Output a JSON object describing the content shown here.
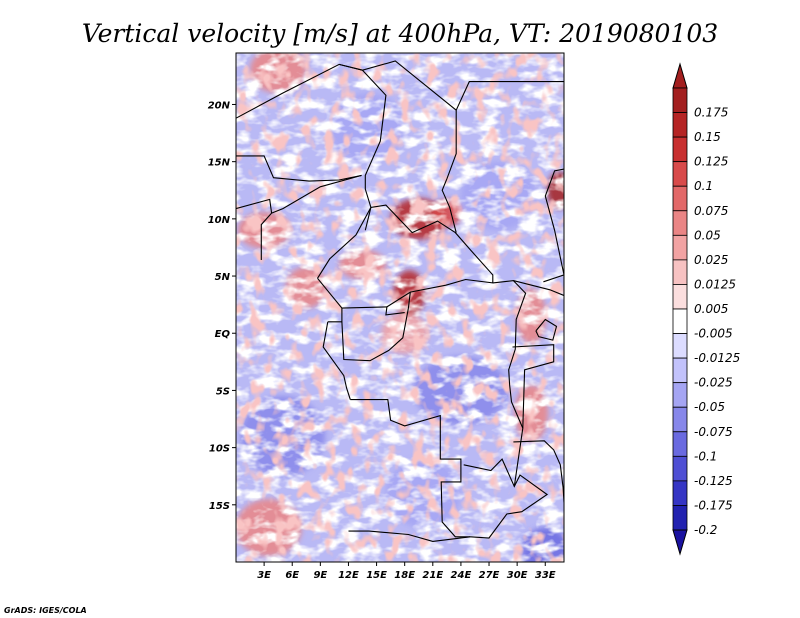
{
  "chart_data": {
    "type": "heatmap",
    "title": "Vertical velocity [m/s] at 400hPa, VT: 2019080103",
    "variable": "Vertical velocity",
    "units": "m/s",
    "level": "400hPa",
    "valid_time": "2019080103",
    "x_axis": {
      "ticks": [
        {
          "value": 3,
          "label": "3E"
        },
        {
          "value": 6,
          "label": "6E"
        },
        {
          "value": 9,
          "label": "9E"
        },
        {
          "value": 12,
          "label": "12E"
        },
        {
          "value": 15,
          "label": "15E"
        },
        {
          "value": 18,
          "label": "18E"
        },
        {
          "value": 21,
          "label": "21E"
        },
        {
          "value": 24,
          "label": "24E"
        },
        {
          "value": 27,
          "label": "27E"
        },
        {
          "value": 30,
          "label": "30E"
        },
        {
          "value": 33,
          "label": "33E"
        }
      ],
      "range": [
        0,
        35
      ]
    },
    "y_axis": {
      "ticks": [
        {
          "value": 20,
          "label": "20N"
        },
        {
          "value": 15,
          "label": "15N"
        },
        {
          "value": 10,
          "label": "10N"
        },
        {
          "value": 5,
          "label": "5N"
        },
        {
          "value": 0,
          "label": "EQ"
        },
        {
          "value": -5,
          "label": "5S"
        },
        {
          "value": -10,
          "label": "10S"
        },
        {
          "value": -15,
          "label": "15S"
        }
      ],
      "range": [
        -20,
        24.5
      ]
    },
    "colorbar": {
      "levels": [
        {
          "label": "0.175",
          "color": "#a31f1f"
        },
        {
          "label": "0.15",
          "color": "#b52424"
        },
        {
          "label": "0.125",
          "color": "#c83030"
        },
        {
          "label": "0.1",
          "color": "#d84a4a"
        },
        {
          "label": "0.075",
          "color": "#e26868"
        },
        {
          "label": "0.05",
          "color": "#ea8585"
        },
        {
          "label": "0.025",
          "color": "#f2a3a3"
        },
        {
          "label": "0.0125",
          "color": "#f7c2c2"
        },
        {
          "label": "0.005",
          "color": "#fbdede"
        },
        {
          "label": "-0.005",
          "color": "#ffffff"
        },
        {
          "label": "-0.0125",
          "color": "#dcdcff"
        },
        {
          "label": "-0.025",
          "color": "#c2c2fb"
        },
        {
          "label": "-0.05",
          "color": "#a5a5f3"
        },
        {
          "label": "-0.075",
          "color": "#8787ea"
        },
        {
          "label": "-0.1",
          "color": "#6a6ae0"
        },
        {
          "label": "-0.125",
          "color": "#4f4fd4"
        },
        {
          "label": "-0.175",
          "color": "#3535c4"
        },
        {
          "label": "-0.2",
          "color": "#2222b0"
        }
      ],
      "bottom_color": "#1a12a0",
      "top_color": "#a31f1f"
    },
    "hotspots": [
      {
        "lon": 19.5,
        "lat": 10.0,
        "strength": 0.16,
        "rx": 3.0,
        "ry": 1.8
      },
      {
        "lon": 22.5,
        "lat": 10.5,
        "strength": 0.12,
        "rx": 1.6,
        "ry": 1.2
      },
      {
        "lon": 18.5,
        "lat": 3.5,
        "strength": 0.15,
        "rx": 1.7,
        "ry": 2.0
      },
      {
        "lon": 34.5,
        "lat": 12.5,
        "strength": 0.2,
        "rx": 1.3,
        "ry": 1.6
      },
      {
        "lon": 13.5,
        "lat": 6.0,
        "strength": 0.05,
        "rx": 2.5,
        "ry": 1.3
      },
      {
        "lon": 4.5,
        "lat": 23.0,
        "strength": 0.05,
        "rx": 3.0,
        "ry": 2.0
      },
      {
        "lon": 3.0,
        "lat": 9.0,
        "strength": 0.05,
        "rx": 2.8,
        "ry": 1.6
      },
      {
        "lon": 7.5,
        "lat": 4.0,
        "strength": 0.05,
        "rx": 2.2,
        "ry": 1.8
      },
      {
        "lon": 18.0,
        "lat": 0.0,
        "strength": 0.04,
        "rx": 2.5,
        "ry": 1.8
      },
      {
        "lon": 31.5,
        "lat": 1.5,
        "strength": 0.07,
        "rx": 1.6,
        "ry": 2.4
      },
      {
        "lon": 31.5,
        "lat": -7.0,
        "strength": 0.05,
        "rx": 1.8,
        "ry": 2.5
      },
      {
        "lon": 3.5,
        "lat": -17.0,
        "strength": 0.05,
        "rx": 3.5,
        "ry": 2.5
      },
      {
        "lon": 24.0,
        "lat": -5.0,
        "strength": -0.06,
        "rx": 5.0,
        "ry": 3.0
      },
      {
        "lon": 5.0,
        "lat": -9.0,
        "strength": -0.07,
        "rx": 4.5,
        "ry": 3.5
      },
      {
        "lon": 28.0,
        "lat": 12.0,
        "strength": -0.05,
        "rx": 4.0,
        "ry": 3.0
      },
      {
        "lon": 14.0,
        "lat": 18.0,
        "strength": -0.04,
        "rx": 4.0,
        "ry": 3.0
      },
      {
        "lon": 33.0,
        "lat": -19.0,
        "strength": -0.09,
        "rx": 2.5,
        "ry": 2.0
      },
      {
        "lon": 20.0,
        "lat": -14.0,
        "strength": -0.03,
        "rx": 4.0,
        "ry": 3.0
      }
    ],
    "boundaries": [
      [
        [
          0,
          18.8
        ],
        [
          5,
          21
        ],
        [
          11,
          23.5
        ],
        [
          13.5,
          23
        ]
      ],
      [
        [
          11,
          23.5
        ],
        [
          13.5,
          23
        ],
        [
          17,
          23.8
        ],
        [
          23.5,
          19.5
        ],
        [
          23.5,
          15.7
        ],
        [
          22.5,
          13.5
        ],
        [
          22,
          12.5
        ],
        [
          22.8,
          11
        ],
        [
          23.5,
          8.8
        ]
      ],
      [
        [
          13.5,
          23
        ],
        [
          16,
          20.8
        ],
        [
          15.4,
          16.8
        ],
        [
          13.8,
          13.8
        ],
        [
          13.8,
          12.6
        ],
        [
          14.4,
          11
        ],
        [
          13.8,
          9
        ]
      ],
      [
        [
          0,
          15.5
        ],
        [
          3,
          15.5
        ],
        [
          4,
          13.6
        ],
        [
          7.8,
          13.3
        ],
        [
          11,
          13.4
        ],
        [
          13.4,
          13.8
        ]
      ],
      [
        [
          0,
          10.9
        ],
        [
          3.6,
          11.7
        ],
        [
          3.8,
          10.5
        ],
        [
          2.7,
          9.5
        ],
        [
          2.7,
          6.4
        ]
      ],
      [
        [
          3.8,
          10.5
        ],
        [
          5,
          10.9
        ],
        [
          9,
          12.8
        ],
        [
          13.4,
          13.8
        ]
      ],
      [
        [
          14.4,
          11
        ],
        [
          16,
          11.2
        ],
        [
          18.8,
          8.8
        ],
        [
          21.5,
          9.8
        ],
        [
          23.4,
          8.8
        ],
        [
          25,
          7.3
        ],
        [
          27.4,
          5.1
        ],
        [
          27.4,
          4.4
        ],
        [
          24.5,
          4.7
        ],
        [
          22.4,
          4.2
        ],
        [
          18.6,
          3.6
        ],
        [
          16.1,
          2.3
        ]
      ],
      [
        [
          8.7,
          4.8
        ],
        [
          10,
          6.5
        ],
        [
          12.8,
          8.6
        ],
        [
          14.4,
          11
        ]
      ],
      [
        [
          8.7,
          4.8
        ],
        [
          11.3,
          2.2
        ],
        [
          16.1,
          2.3
        ],
        [
          16,
          1.6
        ],
        [
          18,
          1.8
        ]
      ],
      [
        [
          9.8,
          1.0
        ],
        [
          11.3,
          1.0
        ],
        [
          11.3,
          2.2
        ]
      ],
      [
        [
          11.3,
          1.0
        ],
        [
          11.5,
          -2.3
        ],
        [
          14.3,
          -2.4
        ],
        [
          16.3,
          -1.5
        ],
        [
          17.8,
          -0.4
        ],
        [
          18.4,
          2.2
        ],
        [
          18.6,
          3.6
        ]
      ],
      [
        [
          9.8,
          1.0
        ],
        [
          9.3,
          -1.2
        ],
        [
          11.5,
          -3.7
        ],
        [
          11.8,
          -4.8
        ],
        [
          12.2,
          -5.8
        ]
      ],
      [
        [
          12.2,
          -5.8
        ],
        [
          16.2,
          -5.8
        ],
        [
          16.5,
          -7.6
        ],
        [
          18,
          -8.1
        ],
        [
          21.8,
          -7.2
        ],
        [
          21.8,
          -11
        ],
        [
          24,
          -11
        ],
        [
          24,
          -13
        ],
        [
          21.9,
          -13
        ],
        [
          22,
          -16.5
        ],
        [
          23.4,
          -17.8
        ],
        [
          25,
          -17.8
        ]
      ],
      [
        [
          12.0,
          -17.3
        ],
        [
          14.2,
          -17.3
        ],
        [
          18.4,
          -17.6
        ],
        [
          21,
          -18.2
        ],
        [
          25,
          -17.8
        ]
      ],
      [
        [
          24.3,
          -11.5
        ],
        [
          27.2,
          -12
        ],
        [
          28.4,
          -11
        ],
        [
          29.7,
          -13.4
        ],
        [
          30.3,
          -12.4
        ],
        [
          33.2,
          -14.1
        ],
        [
          30.5,
          -15.6
        ],
        [
          28.9,
          -15.8
        ],
        [
          27,
          -17.9
        ],
        [
          25,
          -17.8
        ]
      ],
      [
        [
          29.6,
          4.6
        ],
        [
          30.9,
          3.5
        ],
        [
          29.9,
          1.2
        ],
        [
          29.8,
          -1.4
        ],
        [
          29.1,
          -3.2
        ],
        [
          29.2,
          -4.5
        ],
        [
          29.4,
          -6
        ],
        [
          30.6,
          -8.3
        ],
        [
          29.7,
          -13.4
        ]
      ],
      [
        [
          27.4,
          4.4
        ],
        [
          29.6,
          4.6
        ],
        [
          33.5,
          3.8
        ],
        [
          35,
          3.3
        ],
        [
          35,
          5.1
        ],
        [
          34,
          9
        ],
        [
          33,
          12
        ],
        [
          34,
          14.2
        ],
        [
          36,
          14.5
        ]
      ],
      [
        [
          23.5,
          19.5
        ],
        [
          24.9,
          22
        ],
        [
          36,
          22
        ]
      ],
      [
        [
          29.5,
          -1.2
        ],
        [
          33.9,
          -1.0
        ],
        [
          33.9,
          -2.5
        ],
        [
          30.8,
          -3.2
        ],
        [
          30.6,
          -8.3
        ]
      ],
      [
        [
          29.6,
          -9.5
        ],
        [
          32.9,
          -9.4
        ],
        [
          33.9,
          -10.2
        ],
        [
          34.6,
          -11.5
        ],
        [
          34.9,
          -13.5
        ],
        [
          35,
          -14.8
        ]
      ],
      [
        [
          32,
          0.2
        ],
        [
          33,
          1.2
        ],
        [
          34.2,
          0.6
        ],
        [
          33.8,
          -0.6
        ],
        [
          32.3,
          -0.3
        ],
        [
          32,
          0.2
        ]
      ],
      [
        [
          32.8,
          4.5
        ],
        [
          35,
          5.1
        ]
      ]
    ]
  },
  "credit": "GrADS: IGES/COLA"
}
